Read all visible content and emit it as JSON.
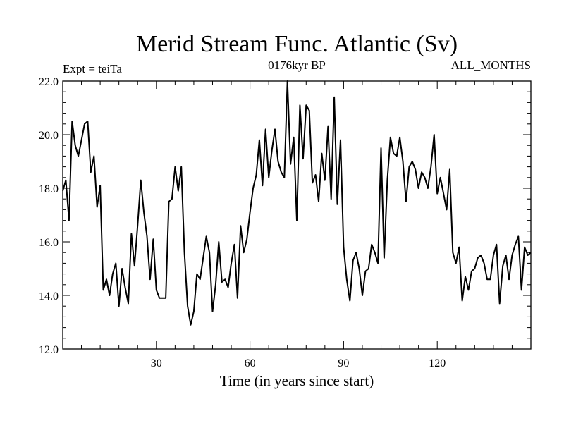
{
  "chart_data": {
    "type": "line",
    "title": "Merid Stream Func. Atlantic (Sv)",
    "left_label": "Expt = teiTa",
    "center_label": "0176kyr BP",
    "right_label": "ALL_MONTHS",
    "xlabel": "Time (in years since start)",
    "ylabel": "",
    "xlim": [
      0,
      150
    ],
    "ylim": [
      12.0,
      22.0
    ],
    "xticks": [
      30,
      60,
      90,
      120
    ],
    "yticks": [
      "12.0",
      "14.0",
      "16.0",
      "18.0",
      "20.0",
      "22.0"
    ],
    "grid": false,
    "x": [
      0,
      1,
      2,
      3,
      4,
      5,
      6,
      7,
      8,
      9,
      10,
      11,
      12,
      13,
      14,
      15,
      16,
      17,
      18,
      19,
      20,
      21,
      22,
      23,
      24,
      25,
      26,
      27,
      28,
      29,
      30,
      31,
      32,
      33,
      34,
      35,
      36,
      37,
      38,
      39,
      40,
      41,
      42,
      43,
      44,
      45,
      46,
      47,
      48,
      49,
      50,
      51,
      52,
      53,
      54,
      55,
      56,
      57,
      58,
      59,
      60,
      61,
      62,
      63,
      64,
      65,
      66,
      67,
      68,
      69,
      70,
      71,
      72,
      73,
      74,
      75,
      76,
      77,
      78,
      79,
      80,
      81,
      82,
      83,
      84,
      85,
      86,
      87,
      88,
      89,
      90,
      91,
      92,
      93,
      94,
      95,
      96,
      97,
      98,
      99,
      100,
      101,
      102,
      103,
      104,
      105,
      106,
      107,
      108,
      109,
      110,
      111,
      112,
      113,
      114,
      115,
      116,
      117,
      118,
      119,
      120,
      121,
      122,
      123,
      124,
      125,
      126,
      127,
      128,
      129,
      130,
      131,
      132,
      133,
      134,
      135,
      136,
      137,
      138,
      139,
      140,
      141,
      142,
      143,
      144,
      145,
      146,
      147,
      148,
      149,
      150
    ],
    "series": [
      {
        "values": [
          17.9,
          18.3,
          16.8,
          20.5,
          19.6,
          19.2,
          19.8,
          20.4,
          20.5,
          18.6,
          19.2,
          17.3,
          18.1,
          14.2,
          14.6,
          14.0,
          14.8,
          15.2,
          13.6,
          15.0,
          14.3,
          13.7,
          16.3,
          15.1,
          16.6,
          18.3,
          17.1,
          16.2,
          14.6,
          16.1,
          14.2,
          13.9,
          13.9,
          13.9,
          17.5,
          17.6,
          18.8,
          17.9,
          18.8,
          15.6,
          13.6,
          12.9,
          13.4,
          14.8,
          14.6,
          15.4,
          16.2,
          15.6,
          13.4,
          14.4,
          16.0,
          14.5,
          14.6,
          14.3,
          15.2,
          15.9,
          13.9,
          16.6,
          15.6,
          16.1,
          17.1,
          18.0,
          18.5,
          19.8,
          18.1,
          20.2,
          18.4,
          19.4,
          20.2,
          19.0,
          18.6,
          18.4,
          22.0,
          18.9,
          19.9,
          16.8,
          21.1,
          19.1,
          21.1,
          20.9,
          18.2,
          18.5,
          17.5,
          19.3,
          18.3,
          20.3,
          17.6,
          21.4,
          17.4,
          19.8,
          15.8,
          14.6,
          13.8,
          15.3,
          15.6,
          15.0,
          14.0,
          14.9,
          15.0,
          15.9,
          15.6,
          15.2,
          19.5,
          15.4,
          18.3,
          19.9,
          19.3,
          19.2,
          19.9,
          19.0,
          17.5,
          18.8,
          19.0,
          18.7,
          18.0,
          18.6,
          18.4,
          18.0,
          18.8,
          20.0,
          17.8,
          18.4,
          17.8,
          17.2,
          18.7,
          15.6,
          15.2,
          15.8,
          13.8,
          14.7,
          14.2,
          14.9,
          15.0,
          15.4,
          15.5,
          15.2,
          14.6,
          14.6,
          15.5,
          15.9,
          13.7,
          15.1,
          15.5,
          14.6,
          15.5,
          15.9,
          16.2,
          14.2,
          15.8,
          15.5,
          15.6
        ]
      }
    ]
  }
}
